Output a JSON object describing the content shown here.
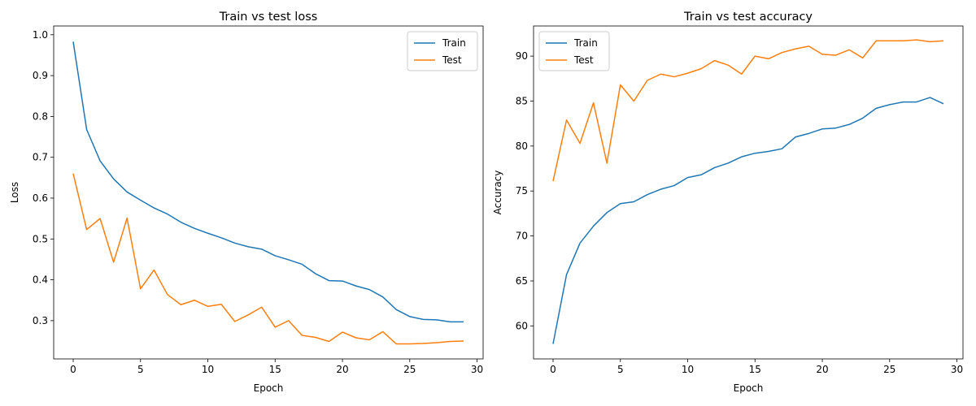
{
  "chart_data": [
    {
      "type": "line",
      "title": "Train vs test loss",
      "xlabel": "Epoch",
      "ylabel": "Loss",
      "xlim": [
        -1.45,
        30.45
      ],
      "ylim": [
        0.2063,
        1.0215
      ],
      "xticks": [
        0,
        5,
        10,
        15,
        20,
        25,
        30
      ],
      "yticks": [
        0.3,
        0.4,
        0.5,
        0.6,
        0.7,
        0.8,
        0.9,
        1.0
      ],
      "ytick_labels": [
        "0.3",
        "0.4",
        "0.5",
        "0.6",
        "0.7",
        "0.8",
        "0.9",
        "1.0"
      ],
      "grid": false,
      "legend_position": "upper right",
      "x": [
        0,
        1,
        2,
        3,
        4,
        5,
        6,
        7,
        8,
        9,
        10,
        11,
        12,
        13,
        14,
        15,
        16,
        17,
        18,
        19,
        20,
        21,
        22,
        23,
        24,
        25,
        26,
        27,
        28,
        29
      ],
      "series": [
        {
          "name": "Train",
          "color": "#1f77b4",
          "values": [
            0.983,
            0.768,
            0.691,
            0.647,
            0.615,
            0.595,
            0.576,
            0.561,
            0.541,
            0.526,
            0.514,
            0.503,
            0.49,
            0.481,
            0.475,
            0.459,
            0.449,
            0.438,
            0.415,
            0.398,
            0.397,
            0.385,
            0.376,
            0.358,
            0.327,
            0.31,
            0.303,
            0.302,
            0.297,
            0.297
          ]
        },
        {
          "name": "Test",
          "color": "#ff7f0e",
          "values": [
            0.66,
            0.523,
            0.55,
            0.443,
            0.551,
            0.378,
            0.424,
            0.364,
            0.339,
            0.35,
            0.335,
            0.34,
            0.298,
            0.314,
            0.333,
            0.284,
            0.3,
            0.264,
            0.259,
            0.249,
            0.272,
            0.258,
            0.253,
            0.273,
            0.243,
            0.243,
            0.244,
            0.246,
            0.249,
            0.25
          ]
        }
      ]
    },
    {
      "type": "line",
      "title": "Train vs test accuracy",
      "xlabel": "Epoch",
      "ylabel": "Accuracy",
      "xlim": [
        -1.45,
        30.45
      ],
      "ylim": [
        56.33,
        93.35
      ],
      "xticks": [
        0,
        5,
        10,
        15,
        20,
        25,
        30
      ],
      "yticks": [
        60,
        65,
        70,
        75,
        80,
        85,
        90
      ],
      "ytick_labels": [
        "60",
        "65",
        "70",
        "75",
        "80",
        "85",
        "90"
      ],
      "grid": false,
      "legend_position": "upper left",
      "x": [
        0,
        1,
        2,
        3,
        4,
        5,
        6,
        7,
        8,
        9,
        10,
        11,
        12,
        13,
        14,
        15,
        16,
        17,
        18,
        19,
        20,
        21,
        22,
        23,
        24,
        25,
        26,
        27,
        28,
        29
      ],
      "series": [
        {
          "name": "Train",
          "color": "#1f77b4",
          "values": [
            58.0,
            65.7,
            69.2,
            71.1,
            72.6,
            73.6,
            73.8,
            74.6,
            75.2,
            75.6,
            76.5,
            76.8,
            77.6,
            78.1,
            78.8,
            79.2,
            79.4,
            79.7,
            81.0,
            81.4,
            81.9,
            82.0,
            82.4,
            83.1,
            84.2,
            84.6,
            84.9,
            84.9,
            85.4,
            84.7
          ]
        },
        {
          "name": "Test",
          "color": "#ff7f0e",
          "values": [
            76.1,
            82.9,
            80.3,
            84.8,
            78.1,
            86.8,
            85.0,
            87.3,
            88.0,
            87.7,
            88.1,
            88.6,
            89.5,
            89.0,
            88.0,
            90.0,
            89.7,
            90.4,
            90.8,
            91.1,
            90.2,
            90.1,
            90.7,
            89.8,
            91.7,
            91.7,
            91.7,
            91.8,
            91.6,
            91.7
          ]
        }
      ]
    }
  ]
}
